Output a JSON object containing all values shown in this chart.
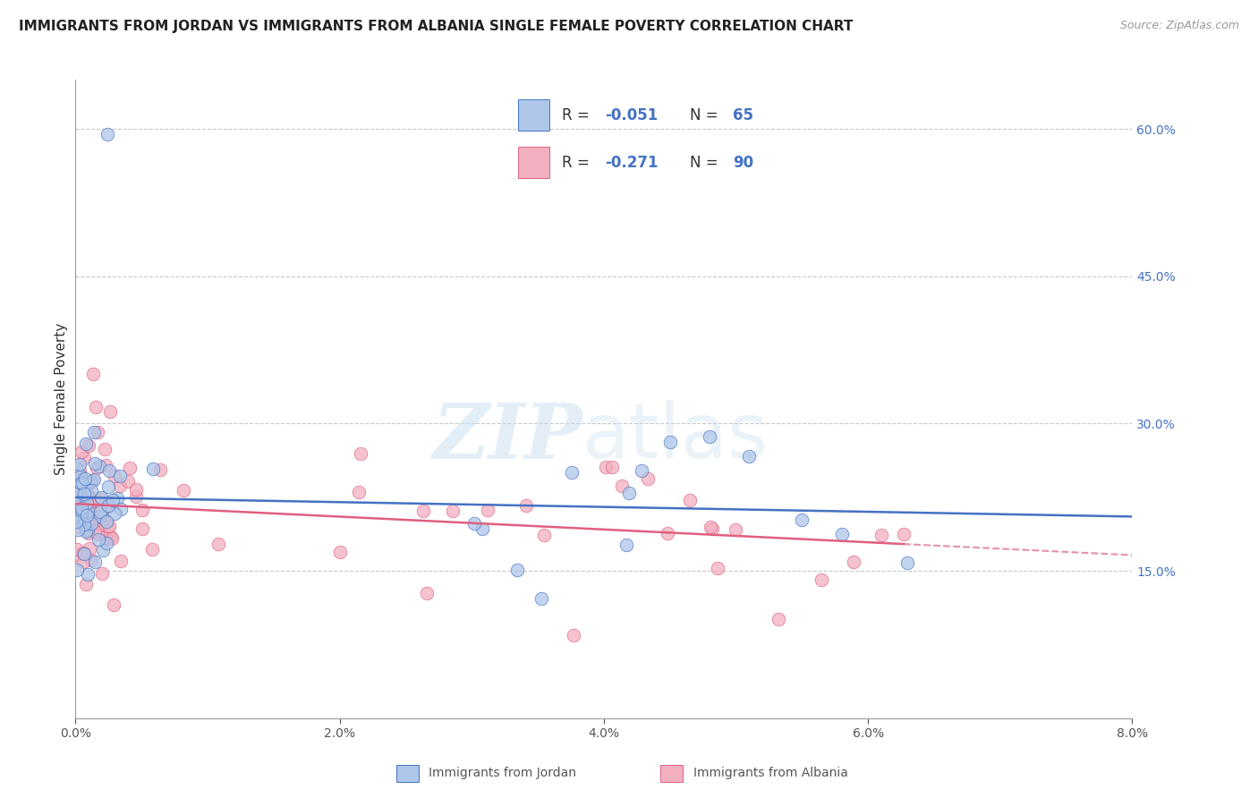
{
  "title": "IMMIGRANTS FROM JORDAN VS IMMIGRANTS FROM ALBANIA SINGLE FEMALE POVERTY CORRELATION CHART",
  "source": "Source: ZipAtlas.com",
  "ylabel": "Single Female Poverty",
  "legend_label_jordan": "Immigrants from Jordan",
  "legend_label_albania": "Immigrants from Albania",
  "jordan_R": -0.051,
  "jordan_N": 65,
  "albania_R": -0.271,
  "albania_N": 90,
  "color_jordan": "#aec6e8",
  "color_albania": "#f2afc0",
  "line_color_jordan": "#4472c4",
  "line_color_albania": "#e06080",
  "xlim": [
    0.0,
    0.08
  ],
  "ylim": [
    0.0,
    0.65
  ],
  "watermark_zip": "ZIP",
  "watermark_atlas": "atlas",
  "background_color": "#ffffff",
  "grid_color": "#bbbbbb"
}
